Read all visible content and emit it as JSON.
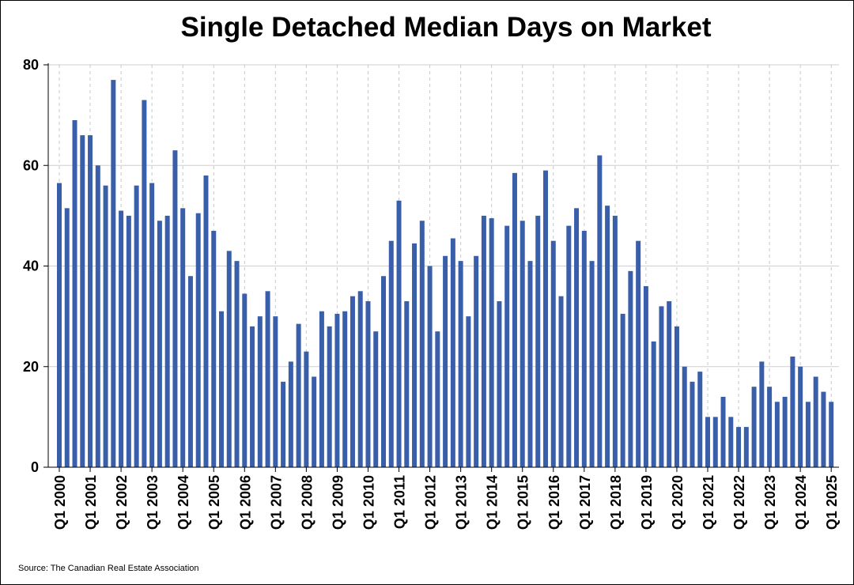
{
  "chart_data": {
    "type": "bar",
    "title": "Single Detached Median Days on Market",
    "source": "Source: The Canadian Real Estate Association",
    "xlabel": "",
    "ylabel": "",
    "ylim": [
      0,
      80
    ],
    "yticks": [
      0,
      20,
      40,
      60,
      80
    ],
    "grid": true,
    "bar_color": "#3A5FAA",
    "tick_labels": [
      "Q1 2000",
      "Q1 2001",
      "Q1 2002",
      "Q1 2003",
      "Q1 2004",
      "Q1 2005",
      "Q1 2006",
      "Q1 2007",
      "Q1 2008",
      "Q1 2009",
      "Q1 2010",
      "Q1 2011",
      "Q1 2012",
      "Q1 2013",
      "Q1 2014",
      "Q1 2015",
      "Q1 2016",
      "Q1 2017",
      "Q1 2018",
      "Q1 2019",
      "Q1 2020",
      "Q1 2021",
      "Q1 2022",
      "Q1 2023",
      "Q1 2024",
      "Q1 2025"
    ],
    "categories": [
      "Q1 2000",
      "Q2 2000",
      "Q3 2000",
      "Q4 2000",
      "Q1 2001",
      "Q2 2001",
      "Q3 2001",
      "Q4 2001",
      "Q1 2002",
      "Q2 2002",
      "Q3 2002",
      "Q4 2002",
      "Q1 2003",
      "Q2 2003",
      "Q3 2003",
      "Q4 2003",
      "Q1 2004",
      "Q2 2004",
      "Q3 2004",
      "Q4 2004",
      "Q1 2005",
      "Q2 2005",
      "Q3 2005",
      "Q4 2005",
      "Q1 2006",
      "Q2 2006",
      "Q3 2006",
      "Q4 2006",
      "Q1 2007",
      "Q2 2007",
      "Q3 2007",
      "Q4 2007",
      "Q1 2008",
      "Q2 2008",
      "Q3 2008",
      "Q4 2008",
      "Q1 2009",
      "Q2 2009",
      "Q3 2009",
      "Q4 2009",
      "Q1 2010",
      "Q2 2010",
      "Q3 2010",
      "Q4 2010",
      "Q1 2011",
      "Q2 2011",
      "Q3 2011",
      "Q4 2011",
      "Q1 2012",
      "Q2 2012",
      "Q3 2012",
      "Q4 2012",
      "Q1 2013",
      "Q2 2013",
      "Q3 2013",
      "Q4 2013",
      "Q1 2014",
      "Q2 2014",
      "Q3 2014",
      "Q4 2014",
      "Q1 2015",
      "Q2 2015",
      "Q3 2015",
      "Q4 2015",
      "Q1 2016",
      "Q2 2016",
      "Q3 2016",
      "Q4 2016",
      "Q1 2017",
      "Q2 2017",
      "Q3 2017",
      "Q4 2017",
      "Q1 2018",
      "Q2 2018",
      "Q3 2018",
      "Q4 2018",
      "Q1 2019",
      "Q2 2019",
      "Q3 2019",
      "Q4 2019",
      "Q1 2020",
      "Q2 2020",
      "Q3 2020",
      "Q4 2020",
      "Q1 2021",
      "Q2 2021",
      "Q3 2021",
      "Q4 2021",
      "Q1 2022",
      "Q2 2022",
      "Q3 2022",
      "Q4 2022",
      "Q1 2023",
      "Q2 2023",
      "Q3 2023",
      "Q4 2023",
      "Q1 2024",
      "Q2 2024",
      "Q3 2024",
      "Q4 2024",
      "Q1 2025"
    ],
    "values": [
      56.5,
      51.5,
      69,
      66,
      66,
      60,
      56,
      77,
      51,
      50,
      56,
      73,
      56.5,
      49,
      50,
      63,
      51.5,
      38,
      50.5,
      58,
      47,
      31,
      43,
      41,
      34.5,
      28,
      30,
      35,
      30,
      17,
      21,
      28.5,
      23,
      18,
      31,
      28,
      30.5,
      31,
      34,
      35,
      33,
      27,
      38,
      45,
      53,
      33,
      44.5,
      49,
      40,
      27,
      42,
      45.5,
      41,
      30,
      42,
      50,
      49.5,
      33,
      48,
      58.5,
      49,
      41,
      50,
      59,
      45,
      34,
      48,
      51.5,
      47,
      41,
      62,
      52,
      50,
      30.5,
      39,
      45,
      36,
      25,
      32,
      33,
      28,
      20,
      17,
      19,
      10,
      10,
      14,
      10,
      8,
      8,
      16,
      21,
      16,
      13,
      14,
      22,
      20,
      13,
      18,
      15,
      13
    ]
  }
}
